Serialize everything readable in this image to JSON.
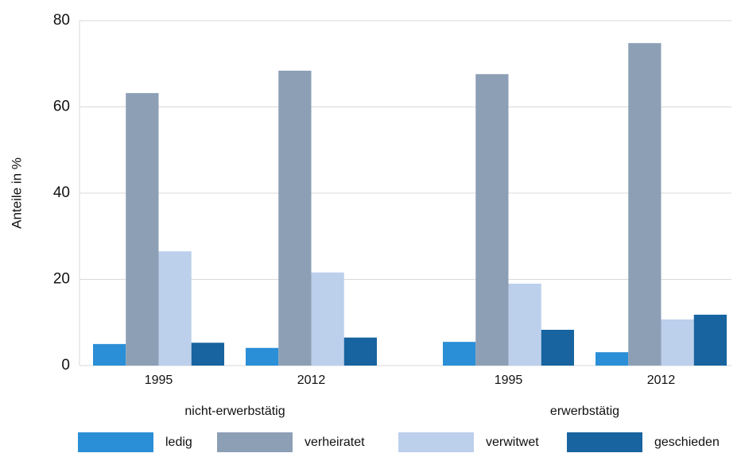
{
  "chart_data": {
    "type": "bar",
    "y_label": "Anteile in %",
    "categories": [
      "1995",
      "2012",
      "1995",
      "2012"
    ],
    "category_groups": [
      "nicht-erwerbstätig",
      "erwerbstätig"
    ],
    "series": [
      {
        "name": "ledig",
        "color": "#2a8fd6",
        "values": [
          5.0,
          4.1,
          5.5,
          3.1
        ]
      },
      {
        "name": "verheiratet",
        "color": "#8d9fb5",
        "values": [
          63.2,
          68.4,
          67.6,
          74.8
        ]
      },
      {
        "name": "verwitwet",
        "color": "#bcd0ec",
        "values": [
          26.5,
          21.6,
          19.0,
          10.7
        ]
      },
      {
        "name": "geschieden",
        "color": "#1764a0",
        "values": [
          5.3,
          6.5,
          8.3,
          11.8
        ]
      }
    ],
    "ylim": [
      0,
      80
    ],
    "yticks": [
      0,
      20,
      40,
      60,
      80
    ],
    "grid": true,
    "legend": "bottom"
  }
}
